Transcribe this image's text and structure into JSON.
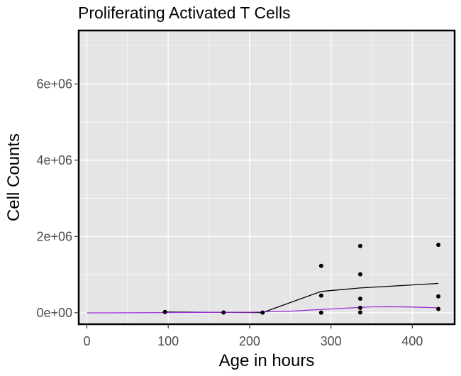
{
  "chart_data": {
    "type": "scatter",
    "title": "Proliferating Activated T Cells",
    "xlabel": "Age in hours",
    "ylabel": "Cell Counts",
    "xlim": [
      -10,
      452
    ],
    "ylim": [
      -300000,
      7400000
    ],
    "x_ticks": [
      {
        "value": 0,
        "label": "0"
      },
      {
        "value": 100,
        "label": "100"
      },
      {
        "value": 200,
        "label": "200"
      },
      {
        "value": 300,
        "label": "300"
      },
      {
        "value": 400,
        "label": "400"
      }
    ],
    "y_ticks": [
      {
        "value": 0,
        "label": "0e+00"
      },
      {
        "value": 2000000,
        "label": "2e+06"
      },
      {
        "value": 4000000,
        "label": "4e+06"
      },
      {
        "value": 6000000,
        "label": "6e+06"
      }
    ],
    "grid": true,
    "points": [
      {
        "x": 96,
        "y": 20000
      },
      {
        "x": 168,
        "y": 8000
      },
      {
        "x": 216,
        "y": 5000
      },
      {
        "x": 288,
        "y": 1230000
      },
      {
        "x": 288,
        "y": 450000
      },
      {
        "x": 288,
        "y": 5000
      },
      {
        "x": 336,
        "y": 1750000
      },
      {
        "x": 336,
        "y": 1010000
      },
      {
        "x": 336,
        "y": 370000
      },
      {
        "x": 336,
        "y": 130000
      },
      {
        "x": 336,
        "y": 10000
      },
      {
        "x": 432,
        "y": 1780000
      },
      {
        "x": 432,
        "y": 430000
      },
      {
        "x": 432,
        "y": 100000
      }
    ],
    "lines": [
      {
        "color": "#000000",
        "x": [
          96,
          168,
          216,
          288,
          336,
          432
        ],
        "y": [
          20000,
          8000,
          5000,
          560000,
          650000,
          770000
        ]
      },
      {
        "color": "#9b30d9",
        "x": [
          0,
          50,
          100,
          150,
          200,
          250,
          300,
          350,
          375,
          400,
          432
        ],
        "y": [
          -2000,
          0,
          5000,
          10000,
          15000,
          40000,
          100000,
          155000,
          160000,
          150000,
          130000
        ]
      }
    ],
    "colors": {
      "panel": "#e5e5e5",
      "grid": "#ffffff",
      "points": "#000000",
      "frame": "#000000"
    }
  }
}
